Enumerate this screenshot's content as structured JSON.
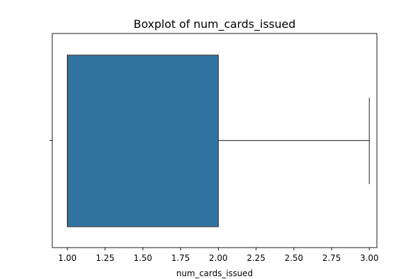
{
  "chart_data": {
    "type": "box",
    "title": "Boxplot of num_cards_issued",
    "xlabel": "num_cards_issued",
    "ylabel": "",
    "xlim": [
      0.9,
      3.05
    ],
    "xticks": [
      "1.00",
      "1.25",
      "1.50",
      "1.75",
      "2.00",
      "2.25",
      "2.50",
      "2.75",
      "3.00"
    ],
    "box": {
      "whisker_low": 1.0,
      "q1": 1.0,
      "median": 1.0,
      "q3": 2.0,
      "whisker_high": 3.0
    },
    "colors": {
      "box_fill": "#3274a1",
      "line": "#3f3f3f"
    }
  }
}
